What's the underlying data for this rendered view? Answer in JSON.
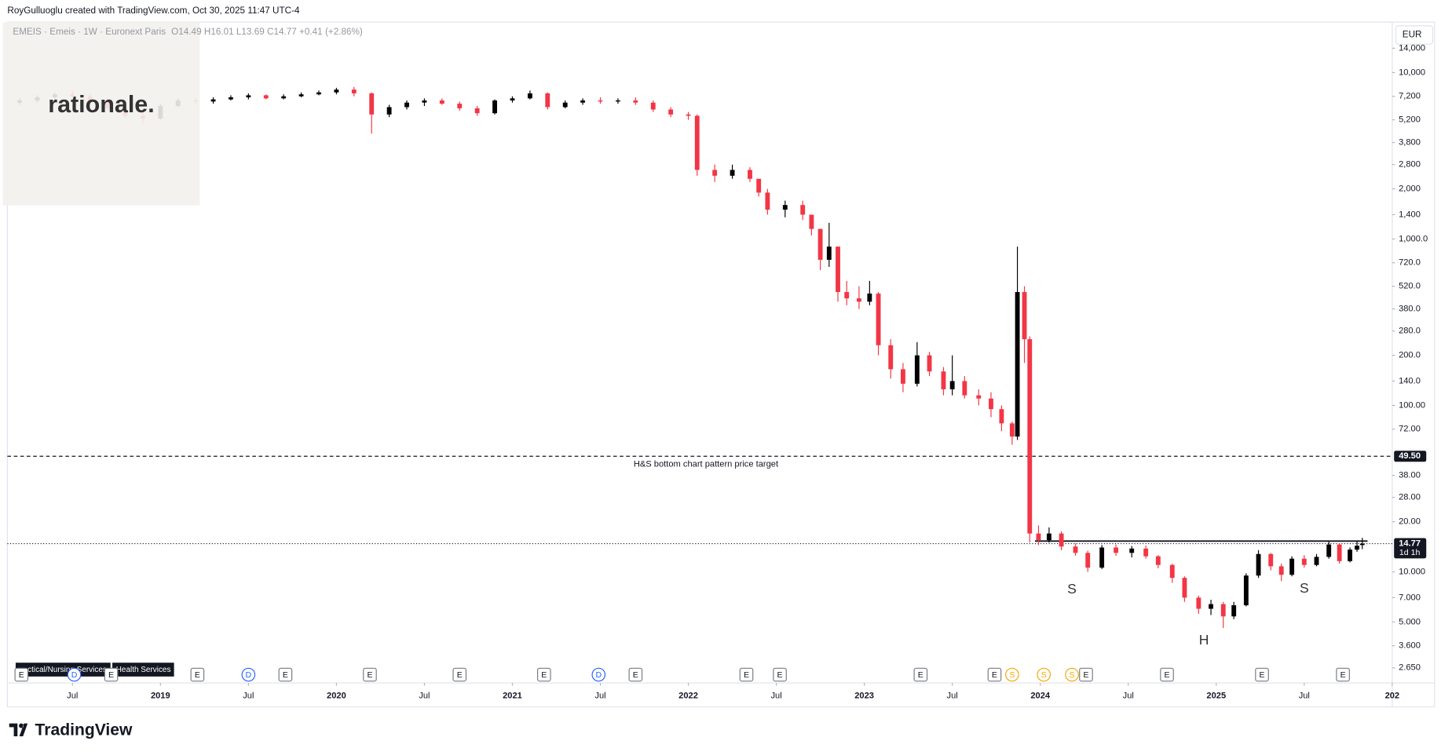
{
  "header": {
    "credit": "RoyGulluoglu created with TradingView.com, Oct 30, 2025 11:47 UTC-4",
    "symbol": "EMEIS · Emeis · 1W · Euronext Paris",
    "ohlc": "O14.49 H16.01 L13.69 C14.77 +0.41 (+2.86%)",
    "currency": "EUR",
    "watermark": "rationale.",
    "logo": "TradingView",
    "sector_labels": [
      "ctical/Nursing Services",
      "Health Services"
    ]
  },
  "chart_data": {
    "type": "candlestick",
    "log_scale": true,
    "grid": false,
    "up_color": "#000000",
    "down_color": "#f23645",
    "xlim": [
      2018.13,
      2026.0
    ],
    "ylim": [
      2.15,
      20100
    ],
    "xticks": [
      {
        "value": 2018.5,
        "label": "Jul"
      },
      2019,
      {
        "value": 2019.5,
        "label": "Jul"
      },
      2020,
      {
        "value": 2020.5,
        "label": "Jul"
      },
      2021,
      {
        "value": 2021.5,
        "label": "Jul"
      },
      2022,
      {
        "value": 2022.5,
        "label": "Jul"
      },
      2023,
      {
        "value": 2023.5,
        "label": "Jul"
      },
      2024,
      {
        "value": 2024.5,
        "label": "Jul"
      },
      2025,
      {
        "value": 2025.5,
        "label": "Jul"
      },
      {
        "value": 2026,
        "label": "202"
      }
    ],
    "yticks": [
      {
        "value": 14000,
        "label": "14,000"
      },
      {
        "value": 10000,
        "label": "10,000"
      },
      {
        "value": 7200,
        "label": "7,200"
      },
      {
        "value": 5200,
        "label": "5,200"
      },
      {
        "value": 3800,
        "label": "3,800"
      },
      {
        "value": 2800,
        "label": "2,800"
      },
      {
        "value": 2000,
        "label": "2,000"
      },
      {
        "value": 1400,
        "label": "1,400"
      },
      {
        "value": 1000,
        "label": "1,000.0"
      },
      {
        "value": 720,
        "label": "720.0"
      },
      {
        "value": 520,
        "label": "520.0"
      },
      {
        "value": 380,
        "label": "380.0"
      },
      {
        "value": 280,
        "label": "280.0"
      },
      {
        "value": 200,
        "label": "200.0"
      },
      {
        "value": 140,
        "label": "140.0"
      },
      {
        "value": 100,
        "label": "100.00"
      },
      {
        "value": 72,
        "label": "72.00"
      },
      {
        "value": 38,
        "label": "38.00"
      },
      {
        "value": 28,
        "label": "28.00"
      },
      {
        "value": 20,
        "label": "20.00"
      },
      {
        "value": 10,
        "label": "10.000"
      },
      {
        "value": 7,
        "label": "7.000"
      },
      {
        "value": 5,
        "label": "5.000"
      },
      {
        "value": 3.6,
        "label": "3.600"
      },
      {
        "value": 2.65,
        "label": "2.650"
      }
    ],
    "x": [
      2018.2,
      2018.3,
      2018.4,
      2018.5,
      2018.6,
      2018.7,
      2018.8,
      2018.9,
      2019.0,
      2019.1,
      2019.2,
      2019.3,
      2019.4,
      2019.5,
      2019.6,
      2019.7,
      2019.8,
      2019.9,
      2020.0,
      2020.1,
      2020.2,
      2020.3,
      2020.4,
      2020.5,
      2020.6,
      2020.7,
      2020.8,
      2020.9,
      2021.0,
      2021.1,
      2021.2,
      2021.3,
      2021.4,
      2021.5,
      2021.6,
      2021.7,
      2021.8,
      2021.9,
      2022.0,
      2022.05,
      2022.15,
      2022.25,
      2022.35,
      2022.4,
      2022.45,
      2022.55,
      2022.65,
      2022.7,
      2022.75,
      2022.8,
      2022.85,
      2022.9,
      2022.97,
      2023.03,
      2023.08,
      2023.15,
      2023.22,
      2023.3,
      2023.37,
      2023.45,
      2023.5,
      2023.57,
      2023.65,
      2023.72,
      2023.78,
      2023.84,
      2023.87,
      2023.91,
      2023.94,
      2023.99,
      2024.05,
      2024.12,
      2024.2,
      2024.27,
      2024.35,
      2024.43,
      2024.52,
      2024.6,
      2024.67,
      2024.75,
      2024.82,
      2024.9,
      2024.97,
      2025.04,
      2025.1,
      2025.17,
      2025.24,
      2025.31,
      2025.37,
      2025.43,
      2025.5,
      2025.57,
      2025.64,
      2025.7,
      2025.76,
      2025.8,
      2025.83
    ],
    "open": [
      6600,
      6800,
      7100,
      7400,
      7200,
      6800,
      6100,
      5500,
      5300,
      6300,
      6800,
      6700,
      6900,
      7100,
      7300,
      7000,
      7200,
      7400,
      7600,
      7900,
      7500,
      5600,
      6200,
      6600,
      6800,
      6500,
      6100,
      5700,
      6800,
      7000,
      7500,
      6200,
      6600,
      6800,
      6700,
      6800,
      6600,
      6000,
      5600,
      5500,
      2600,
      2400,
      2600,
      2300,
      1900,
      1500,
      1600,
      1400,
      1150,
      750,
      900,
      480,
      440,
      420,
      470,
      230,
      165,
      135,
      200,
      160,
      125,
      140,
      115,
      110,
      95,
      78,
      65,
      480,
      250,
      17,
      15.5,
      17,
      14.2,
      13,
      10.6,
      14,
      13,
      13.8,
      12.4,
      11,
      9.2,
      7,
      6,
      6.4,
      5.4,
      6.3,
      9.5,
      12.8,
      10.8,
      9.6,
      12,
      11,
      12.3,
      14.6,
      11.6,
      13.6,
      14.49
    ],
    "high": [
      7000,
      7300,
      7600,
      7800,
      7400,
      7000,
      6300,
      5800,
      6500,
      7000,
      7100,
      7100,
      7300,
      7500,
      7400,
      7400,
      7600,
      7800,
      8100,
      8200,
      7600,
      6400,
      6800,
      7000,
      7000,
      6700,
      6300,
      6900,
      7200,
      7800,
      7600,
      6800,
      7000,
      7100,
      7000,
      7100,
      6800,
      6200,
      5800,
      5600,
      2800,
      2800,
      2700,
      2300,
      2000,
      1700,
      1700,
      1400,
      1150,
      1250,
      900,
      560,
      520,
      560,
      480,
      250,
      180,
      240,
      210,
      170,
      200,
      150,
      125,
      120,
      100,
      80,
      900,
      520,
      260,
      19,
      18.5,
      17.5,
      14.8,
      13.4,
      14.5,
      14.6,
      14.3,
      14.4,
      12.6,
      11.2,
      9.4,
      7.2,
      6.8,
      6.6,
      6.6,
      9.8,
      13.5,
      13,
      11.2,
      12.4,
      12.6,
      12.8,
      15.2,
      14.8,
      14,
      15.4,
      16.01
    ],
    "low": [
      6400,
      6600,
      6900,
      7000,
      6600,
      5900,
      5300,
      4900,
      5200,
      6200,
      6500,
      6500,
      6800,
      6900,
      6900,
      6900,
      7100,
      7300,
      7400,
      7200,
      4300,
      5400,
      6000,
      6300,
      6400,
      5900,
      5500,
      5600,
      6600,
      6900,
      6000,
      6100,
      6400,
      6500,
      6500,
      6400,
      5800,
      5400,
      5200,
      2400,
      2200,
      2300,
      2200,
      1800,
      1400,
      1350,
      1300,
      1050,
      650,
      680,
      420,
      400,
      380,
      400,
      200,
      145,
      120,
      130,
      150,
      115,
      115,
      110,
      100,
      85,
      70,
      58,
      62,
      180,
      15,
      14.5,
      15,
      13.5,
      12.5,
      10,
      10.4,
      12.5,
      12.2,
      12,
      10.5,
      8.6,
      6.6,
      5.6,
      5.5,
      4.6,
      5.2,
      6.2,
      9.2,
      10.2,
      8.8,
      9.4,
      10.6,
      10.8,
      12,
      11.2,
      11.4,
      13.2,
      13.69
    ],
    "close": [
      6800,
      7100,
      7400,
      7200,
      6800,
      6100,
      5500,
      5300,
      6300,
      6800,
      6700,
      6900,
      7100,
      7300,
      7000,
      7200,
      7400,
      7600,
      7900,
      7500,
      5600,
      6200,
      6600,
      6800,
      6500,
      6100,
      5700,
      6800,
      7000,
      7500,
      6200,
      6600,
      6800,
      6700,
      6800,
      6600,
      6000,
      5600,
      5500,
      2600,
      2400,
      2600,
      2300,
      1900,
      1500,
      1600,
      1400,
      1150,
      750,
      900,
      480,
      440,
      420,
      470,
      230,
      165,
      135,
      200,
      160,
      125,
      140,
      115,
      110,
      95,
      78,
      65,
      480,
      250,
      17,
      15.5,
      17,
      14.2,
      13,
      10.6,
      14,
      13,
      13.8,
      12.4,
      11,
      9.2,
      7,
      6,
      6.4,
      5.4,
      6.3,
      9.5,
      12.8,
      10.8,
      9.6,
      12,
      11,
      12.3,
      14.6,
      11.6,
      13.6,
      14.36,
      14.77
    ],
    "lines": [
      {
        "value": 49.5,
        "label": "49.50",
        "style": "dashed",
        "annotation": "H&S bottom chart pattern price target"
      },
      {
        "value": 14.77,
        "label": "14.77",
        "style": "dotted",
        "sublabel": "1d 1h"
      }
    ],
    "neckline": {
      "value": 15.3,
      "x": [
        2023.97,
        2025.86
      ]
    },
    "pattern_labels": [
      {
        "text": "S",
        "x": 2024.18,
        "y": 7.78
      },
      {
        "text": "H",
        "x": 2024.93,
        "y": 3.86
      },
      {
        "text": "S",
        "x": 2025.5,
        "y": 7.9
      }
    ],
    "events": [
      {
        "label": "E",
        "x": 2018.21
      },
      {
        "label": "D",
        "x": 2018.51
      },
      {
        "label": "E",
        "x": 2018.72
      },
      {
        "label": "E",
        "x": 2019.21
      },
      {
        "label": "D",
        "x": 2019.5
      },
      {
        "label": "E",
        "x": 2019.71
      },
      {
        "label": "E",
        "x": 2020.19
      },
      {
        "label": "E",
        "x": 2020.7
      },
      {
        "label": "E",
        "x": 2021.18
      },
      {
        "label": "D",
        "x": 2021.49
      },
      {
        "label": "E",
        "x": 2021.7
      },
      {
        "label": "E",
        "x": 2022.33
      },
      {
        "label": "E",
        "x": 2022.52
      },
      {
        "label": "E",
        "x": 2023.32
      },
      {
        "label": "E",
        "x": 2023.74
      },
      {
        "label": "S",
        "x": 2023.84
      },
      {
        "label": "S",
        "x": 2024.02
      },
      {
        "label": "S",
        "x": 2024.18
      },
      {
        "label": "E",
        "x": 2024.26
      },
      {
        "label": "E",
        "x": 2024.72
      },
      {
        "label": "E",
        "x": 2025.26
      },
      {
        "label": "E",
        "x": 2025.72
      }
    ]
  }
}
